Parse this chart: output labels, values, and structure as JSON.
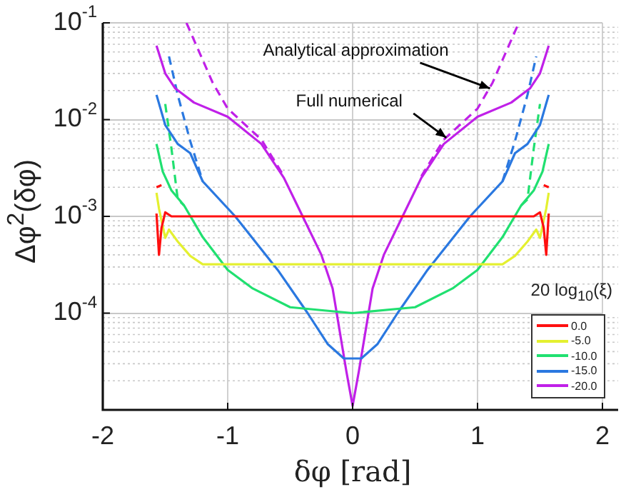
{
  "chart_data": {
    "type": "line",
    "xlabel": "δφ [rad]",
    "ylabel": "Δφ$^{2}$(δφ)",
    "legend_title": "20 log$_{10}$(ξ)",
    "xlim": [
      -2,
      2
    ],
    "xticks": [
      -2,
      -1,
      0,
      1,
      2
    ],
    "ylim": [
      1e-05,
      0.1
    ],
    "log": "y",
    "yticks": [
      {
        "value": 1e-05,
        "label": null
      },
      {
        "value": 0.0001,
        "label": "10$^{-4}$"
      },
      {
        "value": 0.001,
        "label": "10$^{-3}$"
      },
      {
        "value": 0.01,
        "label": "10$^{-2}$"
      },
      {
        "value": 0.1,
        "label": "10$^{-1}$"
      }
    ],
    "grid": true,
    "legend": "bottom right",
    "marker": "none",
    "series": [
      {
        "name": "0.0",
        "color": "#ff1010",
        "line_style": "solid",
        "x": [
          -1.57,
          -1.55,
          -1.53,
          -1.5,
          -1.45,
          0,
          1.45,
          1.5,
          1.53,
          1.55,
          1.57
        ],
        "values": [
          0.00107,
          0.0004,
          0.00076,
          0.0011,
          0.001,
          0.001,
          0.001,
          0.0011,
          0.00076,
          0.0004,
          0.00107
        ]
      },
      {
        "name": "-5.0",
        "color": "#e4f030",
        "line_style": "solid",
        "x": [
          -1.57,
          -1.55,
          -1.5,
          -1.47,
          -1.4,
          -1.3,
          -1.2,
          0,
          1.2,
          1.3,
          1.4,
          1.47,
          1.5,
          1.55,
          1.57
        ],
        "values": [
          0.00175,
          0.0012,
          0.0006,
          0.00073,
          0.00055,
          0.00039,
          0.00032,
          0.00032,
          0.00032,
          0.00039,
          0.00055,
          0.00073,
          0.0006,
          0.0012,
          0.00175
        ]
      },
      {
        "name": "-10.0",
        "color": "#20e070",
        "line_style": "solid",
        "x": [
          -1.57,
          -1.52,
          -1.45,
          -1.35,
          -1.2,
          -1,
          -0.8,
          -0.5,
          0,
          0.5,
          0.8,
          1,
          1.2,
          1.35,
          1.45,
          1.52,
          1.57
        ],
        "values": [
          0.0056,
          0.0029,
          0.00185,
          0.0013,
          0.00061,
          0.00028,
          0.00018,
          0.000115,
          0.0001,
          0.000115,
          0.00018,
          0.00028,
          0.00061,
          0.0013,
          0.00185,
          0.0029,
          0.0056
        ]
      },
      {
        "name": "-15.0",
        "color": "#2a78e0",
        "line_style": "solid",
        "x": [
          -1.57,
          -1.5,
          -1.4,
          -1.3,
          -1.2,
          -0.94,
          -0.6,
          -0.36,
          -0.2,
          -0.07,
          0,
          0.07,
          0.2,
          0.36,
          0.6,
          0.94,
          1.2,
          1.3,
          1.4,
          1.5,
          1.57
        ],
        "values": [
          0.018,
          0.0088,
          0.0056,
          0.0045,
          0.0023,
          0.001,
          0.00028,
          0.0001,
          4.8e-05,
          3.4e-05,
          3.4e-05,
          3.4e-05,
          4.8e-05,
          0.0001,
          0.00028,
          0.001,
          0.0023,
          0.0045,
          0.0056,
          0.0088,
          0.018
        ]
      },
      {
        "name": "-20.0",
        "color": "#c020e8",
        "line_style": "solid",
        "x": [
          -1.57,
          -1.5,
          -1.42,
          -1.27,
          -1,
          -0.73,
          -0.55,
          -0.4,
          -0.25,
          -0.16,
          -0.05,
          0,
          0.05,
          0.16,
          0.25,
          0.4,
          0.55,
          0.73,
          1,
          1.27,
          1.42,
          1.5,
          1.57
        ],
        "values": [
          0.058,
          0.03,
          0.021,
          0.015,
          0.0107,
          0.0056,
          0.0025,
          0.001,
          0.0004,
          0.00018,
          2.5e-05,
          1.1e-05,
          2.5e-05,
          0.00018,
          0.0004,
          0.001,
          0.0025,
          0.0056,
          0.0107,
          0.015,
          0.021,
          0.03,
          0.058
        ]
      },
      {
        "color": "#ff1010",
        "line_style": "dashed",
        "x": [
          -1.57,
          -1.53,
          0,
          1.53,
          1.57
        ],
        "values": [
          0.002,
          0.0021,
          null,
          0.0021,
          0.002
        ]
      },
      {
        "color": "#20e070",
        "line_style": "dashed",
        "x": [
          -1.5,
          -1.45,
          -1.4,
          -1.35,
          0,
          1.35,
          1.4,
          1.45,
          1.5
        ],
        "values": [
          0.0145,
          0.005,
          0.0015,
          0.0013,
          null,
          0.0013,
          0.0015,
          0.005,
          0.0145
        ]
      },
      {
        "color": "#2a78e0",
        "line_style": "dashed",
        "x": [
          -1.47,
          -1.4,
          -1.3,
          -1.2,
          0,
          1.2,
          1.3,
          1.4,
          1.47
        ],
        "values": [
          0.045,
          0.018,
          0.006,
          0.0023,
          null,
          0.0023,
          0.006,
          0.018,
          0.045
        ]
      },
      {
        "color": "#c020e8",
        "line_style": "dashed",
        "x": [
          -1.33,
          -1.12,
          -1,
          -0.73,
          -0.55,
          0,
          0.55,
          0.73,
          1,
          1.12,
          1.33
        ],
        "values": [
          0.1,
          0.024,
          0.013,
          0.0062,
          0.0026,
          null,
          0.0026,
          0.0062,
          0.013,
          0.024,
          0.1
        ]
      }
    ],
    "annotations": [
      {
        "text": "Analytical approximation",
        "x": 1.1,
        "y": 0.021
      },
      {
        "text": "Full numerical",
        "x": 0.75,
        "y": 0.0065
      }
    ]
  }
}
